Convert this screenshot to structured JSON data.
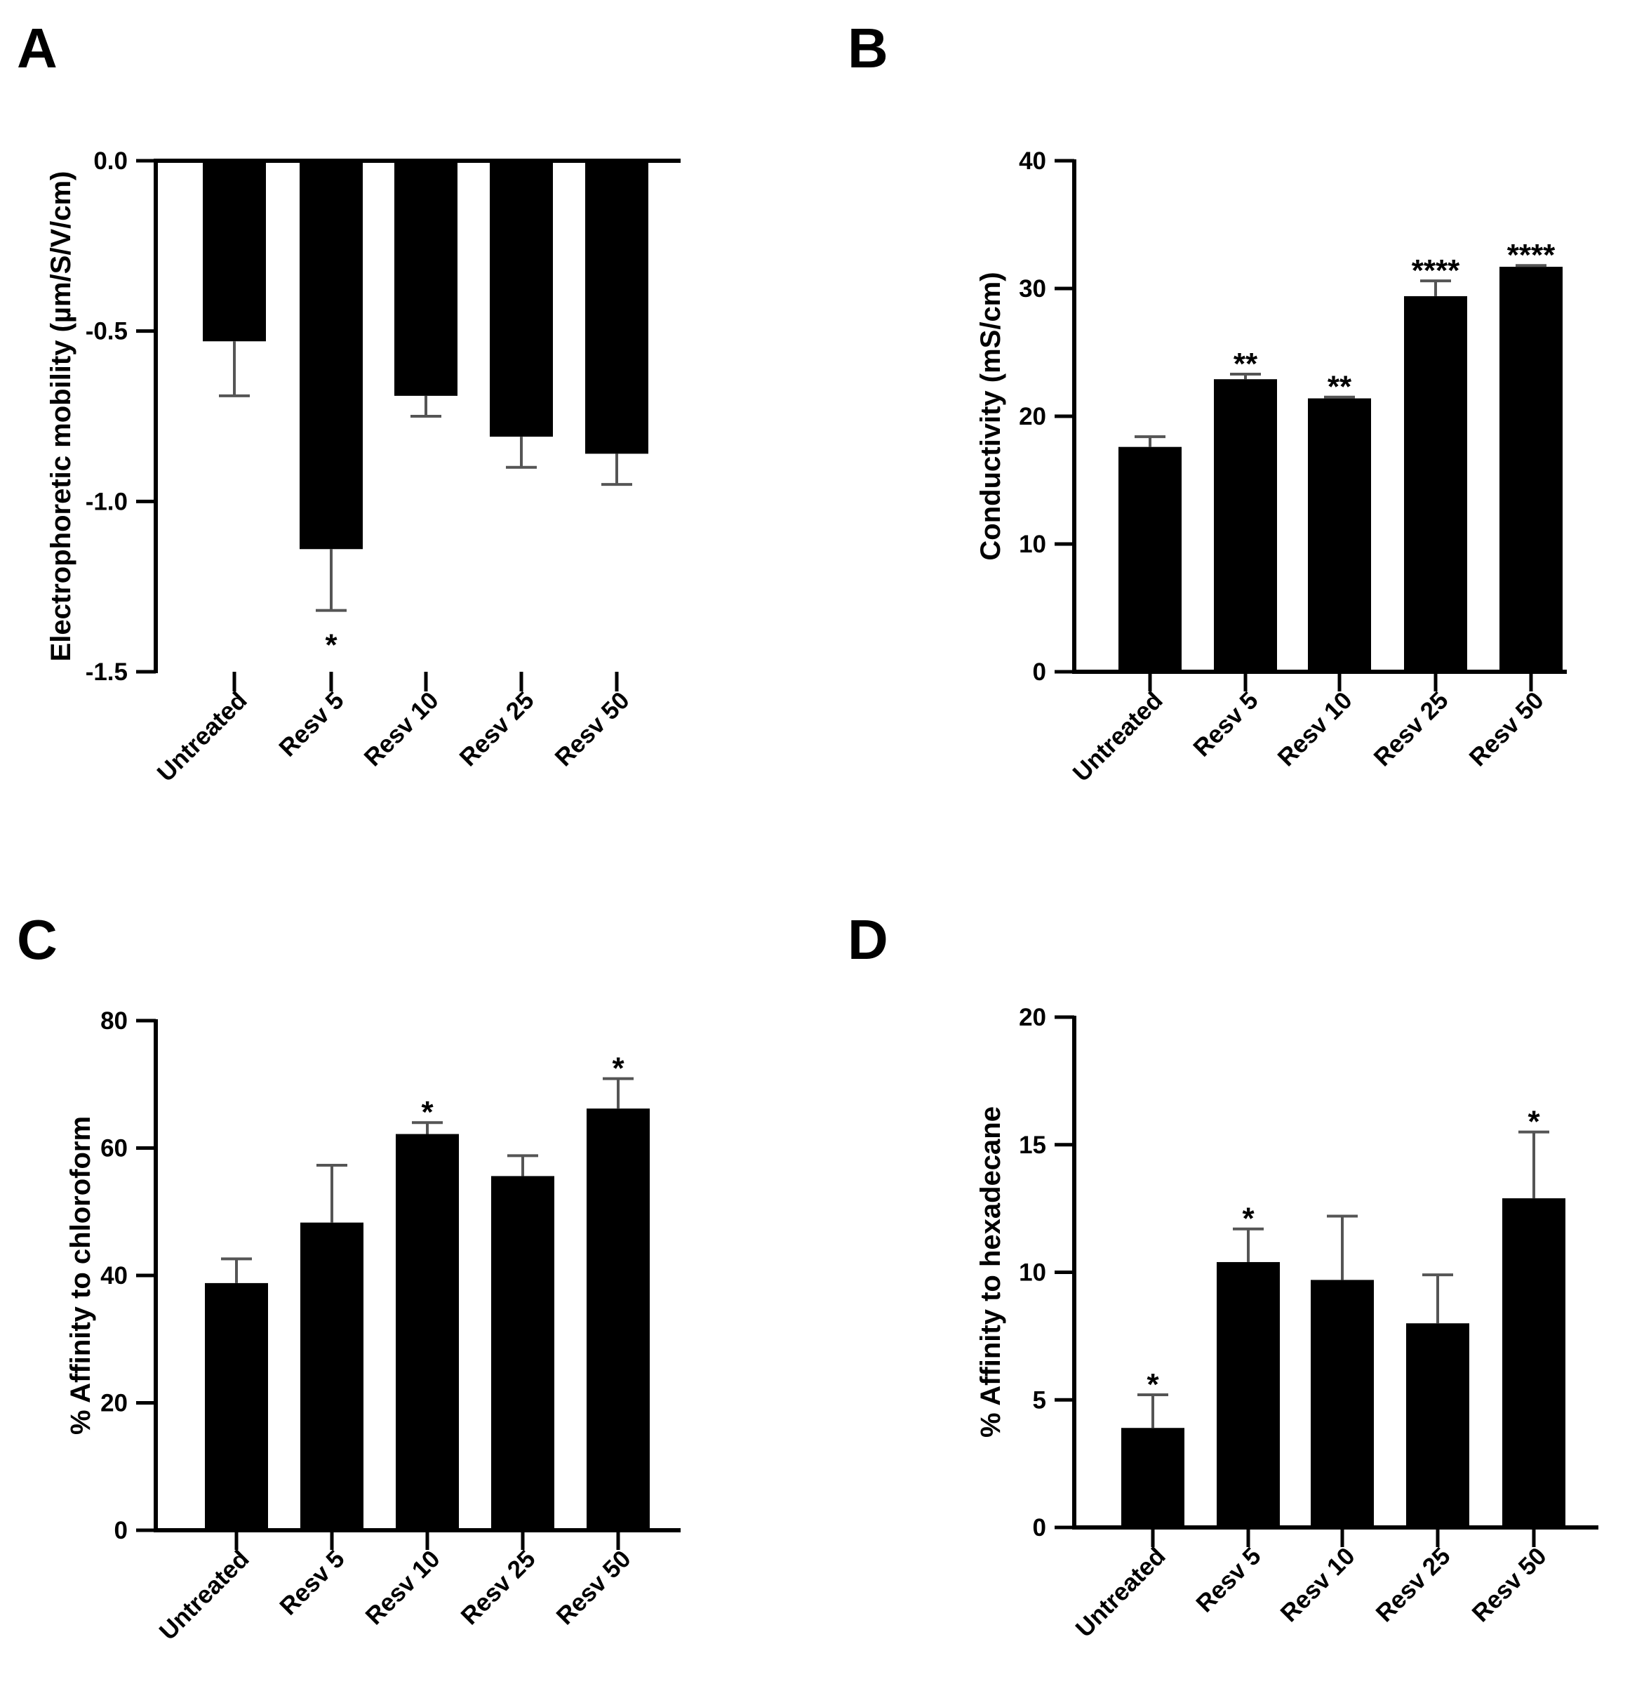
{
  "chart_data": [
    {
      "panel": "A",
      "type": "bar",
      "categories": [
        "Untreated",
        "Resv 5",
        "Resv 10",
        "Resv 25",
        "Resv 50"
      ],
      "values": [
        -0.53,
        -1.14,
        -0.69,
        -0.81,
        -0.86
      ],
      "errors": [
        0.16,
        0.18,
        0.06,
        0.09,
        0.09
      ],
      "significance": [
        "",
        "*",
        "",
        "",
        ""
      ],
      "ylabel": "Electrophoretic mobility (µm/S/V/cm)",
      "ylim": [
        -1.5,
        0.0
      ],
      "yticks": [
        0.0,
        -0.5,
        -1.0,
        -1.5
      ],
      "ytick_labels": [
        "0.0",
        "-0.5",
        "-1.0",
        "-1.5"
      ]
    },
    {
      "panel": "B",
      "type": "bar",
      "categories": [
        "Untreated",
        "Resv 5",
        "Resv 10",
        "Resv 25",
        "Resv 50"
      ],
      "values": [
        17.6,
        22.9,
        21.4,
        29.4,
        31.7
      ],
      "errors": [
        0.8,
        0.4,
        0.1,
        1.2,
        0.1
      ],
      "significance": [
        "",
        "**",
        "**",
        "****",
        "****"
      ],
      "ylabel": "Conductivity (mS/cm)",
      "ylim": [
        0,
        40
      ],
      "yticks": [
        0,
        10,
        20,
        30,
        40
      ],
      "ytick_labels": [
        "0",
        "10",
        "20",
        "30",
        "40"
      ]
    },
    {
      "panel": "C",
      "type": "bar",
      "categories": [
        "Untreated",
        "Resv 5",
        "Resv 10",
        "Resv 25",
        "Resv 50"
      ],
      "values": [
        38.8,
        48.3,
        62.2,
        55.6,
        66.2
      ],
      "errors": [
        3.8,
        9.0,
        1.8,
        3.2,
        4.7
      ],
      "significance": [
        "",
        "",
        "*",
        "",
        "*"
      ],
      "ylabel": "% Affinity to chloroform",
      "ylim": [
        0,
        80
      ],
      "yticks": [
        0,
        20,
        40,
        60,
        80
      ],
      "ytick_labels": [
        "0",
        "20",
        "40",
        "60",
        "80"
      ]
    },
    {
      "panel": "D",
      "type": "bar",
      "categories": [
        "Untreated",
        "Resv 5",
        "Resv 10",
        "Resv 25",
        "Resv 50"
      ],
      "values": [
        3.9,
        10.4,
        9.7,
        8.0,
        12.9
      ],
      "errors": [
        1.3,
        1.3,
        2.5,
        1.9,
        2.6
      ],
      "significance": [
        "*",
        "*",
        "",
        "",
        "*"
      ],
      "ylabel": "% Affinity to hexadecane",
      "ylim": [
        0,
        20
      ],
      "yticks": [
        0,
        5,
        10,
        15,
        20
      ],
      "ytick_labels": [
        "0",
        "5",
        "10",
        "15",
        "20"
      ]
    }
  ]
}
